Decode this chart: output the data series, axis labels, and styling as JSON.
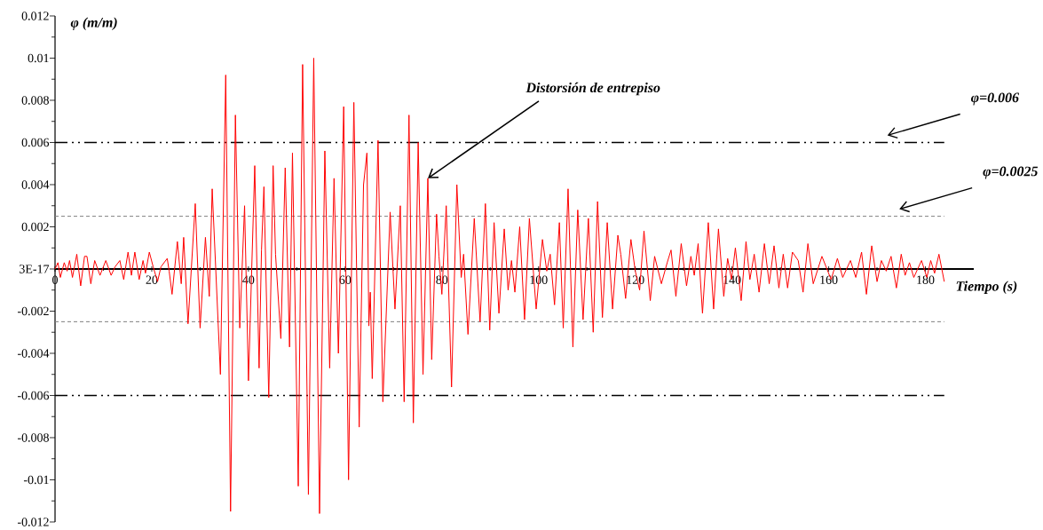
{
  "chart_data": {
    "type": "line",
    "xlabel": "Tiempo (s)",
    "ylabel": "φ (m/m)",
    "xlim": [
      0,
      190
    ],
    "ylim": [
      -0.012,
      0.012
    ],
    "xticks": [
      0,
      20,
      40,
      60,
      80,
      100,
      120,
      140,
      160,
      180
    ],
    "yticks": [
      -0.012,
      -0.01,
      -0.008,
      -0.006,
      -0.004,
      -0.002,
      {
        "value": 0,
        "label": "3E-17"
      },
      0.002,
      0.004,
      0.006,
      0.008,
      0.01,
      0.012
    ],
    "x": [
      0,
      0.6,
      1.1,
      1.9,
      2.5,
      3,
      3.6,
      4.5,
      5.3,
      6.1,
      6.6,
      7.4,
      8.2,
      9.3,
      10.5,
      11.6,
      12.4,
      13.4,
      14.2,
      15.1,
      15.8,
      16.5,
      17.4,
      18.2,
      18.7,
      19.5,
      20.3,
      21.2,
      21.9,
      23.2,
      23.6,
      24.2,
      25.3,
      26.1,
      26.6,
      27.5,
      29,
      30,
      31.1,
      31.9,
      32.5,
      34.2,
      35.3,
      36.3,
      37.3,
      38.2,
      39.2,
      40,
      41.3,
      42.2,
      42.7,
      43.2,
      44.2,
      45.1,
      45.6,
      46.7,
      47.6,
      48.5,
      49.1,
      50.3,
      51.2,
      52.4,
      53.5,
      54.7,
      55.8,
      56.8,
      57.7,
      58.6,
      59.7,
      60.7,
      61.8,
      62.9,
      63.8,
      64.5,
      64.9,
      65.2,
      65.6,
      66.8,
      67.8,
      69.3,
      70.3,
      71.4,
      72.2,
      73.2,
      74.1,
      75.1,
      76.1,
      77.1,
      77.9,
      78.9,
      79.4,
      80,
      80.9,
      82,
      83.1,
      84,
      84.5,
      85.4,
      86.7,
      87.9,
      89,
      89.9,
      90.8,
      91.8,
      92.9,
      93.7,
      94.4,
      95.1,
      96.1,
      97.1,
      98.1,
      99.5,
      100.8,
      101.7,
      102.4,
      103.3,
      104.3,
      105.1,
      106.1,
      107.1,
      108.1,
      109.2,
      110.3,
      111.3,
      112.2,
      113.2,
      114.2,
      115.3,
      116.4,
      117,
      118,
      119.1,
      120,
      120.9,
      121.8,
      123.1,
      124,
      125.4,
      126.6,
      127.4,
      128.4,
      129.5,
      130.6,
      131.5,
      132.2,
      133,
      133.9,
      135.1,
      136.2,
      137.2,
      138.3,
      139.1,
      139.9,
      140.7,
      141.9,
      142.9,
      143.7,
      144.6,
      145.6,
      146.7,
      147.7,
      148.7,
      149.7,
      150.6,
      151.5,
      152.5,
      153.7,
      154.7,
      155.7,
      156.8,
      158.6,
      160.5,
      161.8,
      162.9,
      164.5,
      165.6,
      166.8,
      167.8,
      168.9,
      170,
      170.9,
      171.9,
      172.9,
      174,
      175,
      175.8,
      176.7,
      177.6,
      179.2,
      180.3,
      181.1,
      181.9,
      182.8,
      183.9
    ],
    "series": [
      {
        "color": "#ff0000",
        "values": [
          0,
          0.0003,
          -0.0004,
          0.0003,
          -0.0001,
          0.0004,
          -0.0004,
          0.0007,
          -0.0008,
          0.0006,
          0.0006,
          -0.0007,
          0.0004,
          -0.0003,
          0.0004,
          -0.0003,
          0.0001,
          0.0004,
          -0.0005,
          0.0008,
          -0.0003,
          0.0008,
          -0.0005,
          0.0004,
          -0.0002,
          0.0008,
          0.0001,
          -0.0006,
          0.0001,
          0.0005,
          -0.0001,
          -0.0012,
          0.0013,
          -0.0007,
          0.0015,
          -0.0026,
          0.0031,
          -0.0028,
          0.0015,
          -0.0013,
          0.0038,
          -0.005,
          0.0092,
          -0.0115,
          0.0073,
          -0.0028,
          0.003,
          -0.0053,
          0.0049,
          -0.0047,
          0.0009,
          0.0039,
          -0.0061,
          0.0049,
          0.0007,
          -0.0033,
          0.0048,
          -0.0037,
          0.0055,
          -0.0103,
          0.0097,
          -0.0107,
          0.01,
          -0.0116,
          0.0056,
          -0.0047,
          0.0043,
          -0.004,
          0.0077,
          -0.01,
          0.0079,
          -0.0075,
          0.004,
          0.0055,
          -0.0027,
          -0.0011,
          -0.0052,
          0.0061,
          -0.0063,
          0.0027,
          -0.0019,
          0.003,
          -0.0063,
          0.0073,
          -0.0073,
          0.006,
          -0.005,
          0.0043,
          -0.0043,
          0.0026,
          0.0006,
          -0.0012,
          0.003,
          -0.0056,
          0.004,
          -0.0004,
          0.0007,
          -0.0031,
          0.0024,
          -0.0025,
          0.0031,
          -0.0029,
          0.0022,
          -0.0021,
          0.0019,
          -0.001,
          0.0004,
          -0.0011,
          0.002,
          -0.0024,
          0.0024,
          -0.0019,
          0.0014,
          -0.0001,
          0.0007,
          -0.0017,
          0.0022,
          -0.0028,
          0.0038,
          -0.0037,
          0.0028,
          -0.0024,
          0.0024,
          -0.003,
          0.0032,
          -0.0023,
          0.0022,
          -0.0019,
          0.0016,
          0.0007,
          -0.0014,
          0.0014,
          -0.0001,
          -0.001,
          0.0018,
          -0.0015,
          0.0006,
          -0.0007,
          0.0003,
          0.0009,
          -0.0013,
          0.0012,
          -0.0008,
          0.0006,
          -0.0003,
          0.0012,
          -0.0021,
          0.0022,
          -0.0019,
          0.0019,
          -0.0013,
          0.0005,
          -0.0005,
          0.001,
          -0.0015,
          0.0013,
          -0.0005,
          0.0007,
          -0.0011,
          0.0012,
          -0.0007,
          0.0011,
          -0.0009,
          0.0007,
          -0.0009,
          0.0008,
          0.0004,
          -0.0011,
          0.0012,
          -0.0007,
          0.0006,
          -0.0005,
          0.0005,
          -0.0004,
          0.0004,
          -0.0004,
          0.0008,
          -0.0012,
          0.0011,
          -0.0006,
          0.0004,
          -0.0001,
          0.0006,
          -0.0009,
          0.0007,
          -0.0003,
          0.0003,
          -0.0004,
          0.0004,
          -0.0004,
          0.0004,
          -0.0002,
          0.0007,
          -0.0006
        ]
      }
    ],
    "ref_lines": [
      {
        "axis": "y",
        "value": 0.006,
        "label": "φ=0.006",
        "color": "#000000",
        "line_style": "dashdot"
      },
      {
        "axis": "y",
        "value": -0.006,
        "color": "#000000",
        "line_style": "dashdot"
      },
      {
        "axis": "y",
        "value": 0.0025,
        "label": "φ=0.0025",
        "color": "#808080",
        "line_style": "dashed"
      },
      {
        "axis": "y",
        "value": -0.0025,
        "color": "#808080",
        "line_style": "dashed"
      }
    ],
    "annotations": [
      {
        "text": "Distorsión de entrepiso",
        "x": 77.1,
        "y": 0.0043
      }
    ]
  }
}
